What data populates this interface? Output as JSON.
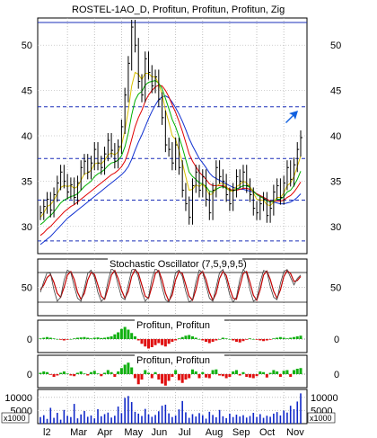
{
  "chart_data": {
    "type": "line",
    "title": "ROSTEL-1AO_D, Profitun, Profitun, Profitun, Zig",
    "price_axis": {
      "ylim": [
        27,
        53
      ],
      "ticks": [
        30,
        35,
        40,
        45,
        50
      ],
      "ticks_right": [
        30,
        35,
        40,
        45,
        50
      ]
    },
    "reference_levels": [
      52.5,
      43.2,
      37.5,
      32.9,
      28.4
    ],
    "x_labels": [
      "l2",
      "Mar",
      "Apr",
      "May",
      "Jun",
      "Jul",
      "Aug",
      "Sep",
      "Oct",
      "Nov"
    ],
    "price_close": [
      31.5,
      32.2,
      33.0,
      31.8,
      33.5,
      34.8,
      36.0,
      35.0,
      33.8,
      34.6,
      33.2,
      34.8,
      36.5,
      37.2,
      36.0,
      37.0,
      38.5,
      37.0,
      36.5,
      38.0,
      39.5,
      38.4,
      37.2,
      38.8,
      41.0,
      44.5,
      48.0,
      52.0,
      50.0,
      46.0,
      44.5,
      48.5,
      47.0,
      45.5,
      46.5,
      44.0,
      42.0,
      39.0,
      38.5,
      37.0,
      39.0,
      36.5,
      34.0,
      32.5,
      31.0,
      34.5,
      36.0,
      34.0,
      35.5,
      33.0,
      31.5,
      34.0,
      36.5,
      35.5,
      35.0,
      33.5,
      32.5,
      34.0,
      35.5,
      35.0,
      36.0,
      34.5,
      33.5,
      32.0,
      31.5,
      32.5,
      33.0,
      31.2,
      32.0,
      33.8,
      34.5,
      33.2,
      34.8,
      36.5,
      35.2,
      36.8,
      38.5,
      39.8
    ],
    "ma_fast": [
      31.0,
      31.5,
      32.2,
      32.4,
      32.9,
      33.6,
      34.3,
      34.5,
      34.4,
      34.5,
      34.2,
      34.4,
      35.1,
      35.8,
      35.9,
      36.2,
      36.9,
      37.0,
      36.9,
      37.3,
      37.9,
      38.1,
      37.9,
      38.2,
      39.0,
      40.6,
      42.8,
      45.5,
      47.0,
      46.8,
      46.2,
      46.9,
      46.9,
      46.5,
      46.5,
      45.7,
      44.6,
      42.8,
      41.5,
      40.0,
      39.6,
      38.4,
      37.0,
      35.5,
      34.0,
      34.1,
      34.6,
      34.4,
      34.7,
      34.2,
      33.5,
      33.6,
      34.4,
      34.7,
      34.8,
      34.4,
      33.9,
      33.9,
      34.4,
      34.6,
      35.0,
      34.8,
      34.4,
      33.7,
      33.0,
      32.9,
      32.9,
      32.4,
      32.3,
      32.7,
      33.2,
      33.2,
      33.7,
      34.5,
      34.8,
      35.5,
      36.6,
      37.8
    ],
    "ma_mid": [
      30.2,
      30.5,
      30.9,
      31.2,
      31.6,
      32.1,
      32.6,
      32.9,
      33.1,
      33.3,
      33.4,
      33.6,
      34.0,
      34.4,
      34.7,
      35.0,
      35.5,
      35.8,
      36.0,
      36.3,
      36.7,
      37.0,
      37.1,
      37.3,
      37.8,
      38.8,
      40.3,
      42.3,
      43.9,
      44.6,
      44.9,
      45.6,
      45.9,
      46.0,
      46.1,
      45.8,
      45.2,
      44.1,
      43.0,
      41.8,
      41.0,
      39.9,
      38.7,
      37.4,
      36.0,
      35.5,
      35.2,
      34.8,
      34.7,
      34.4,
      33.9,
      33.8,
      34.1,
      34.3,
      34.4,
      34.2,
      34.0,
      33.9,
      34.1,
      34.3,
      34.5,
      34.5,
      34.3,
      33.9,
      33.5,
      33.3,
      33.1,
      32.8,
      32.7,
      32.8,
      33.0,
      33.0,
      33.3,
      33.8,
      34.0,
      34.5,
      35.2,
      36.1
    ],
    "ma_slow": [
      29.0,
      29.3,
      29.7,
      30.0,
      30.4,
      30.8,
      31.2,
      31.6,
      31.9,
      32.2,
      32.4,
      32.7,
      33.0,
      33.3,
      33.6,
      33.9,
      34.2,
      34.5,
      34.8,
      35.1,
      35.4,
      35.7,
      35.9,
      36.2,
      36.6,
      37.2,
      38.2,
      39.6,
      41.0,
      42.0,
      42.8,
      43.8,
      44.5,
      45.0,
      45.4,
      45.6,
      45.5,
      45.0,
      44.3,
      43.4,
      42.6,
      41.6,
      40.5,
      39.3,
      38.0,
      37.2,
      36.6,
      36.0,
      35.6,
      35.2,
      34.7,
      34.5,
      34.5,
      34.5,
      34.5,
      34.3,
      34.1,
      34.0,
      34.0,
      34.1,
      34.2,
      34.2,
      34.1,
      33.9,
      33.6,
      33.4,
      33.2,
      33.0,
      32.8,
      32.8,
      32.8,
      32.8,
      32.9,
      33.2,
      33.4,
      33.8,
      34.3,
      34.9
    ],
    "ma_long": [
      28.0,
      28.3,
      28.6,
      28.9,
      29.3,
      29.7,
      30.1,
      30.5,
      30.9,
      31.2,
      31.5,
      31.8,
      32.1,
      32.4,
      32.7,
      33.0,
      33.3,
      33.6,
      33.9,
      34.2,
      34.5,
      34.8,
      35.1,
      35.4,
      35.7,
      36.1,
      36.6,
      37.4,
      38.4,
      39.3,
      40.1,
      41.0,
      41.9,
      42.7,
      43.4,
      44.0,
      44.3,
      44.4,
      44.2,
      43.7,
      43.1,
      42.4,
      41.6,
      40.7,
      39.7,
      38.9,
      38.2,
      37.5,
      37.0,
      36.5,
      35.9,
      35.5,
      35.3,
      35.1,
      34.9,
      34.7,
      34.5,
      34.3,
      34.2,
      34.1,
      34.1,
      34.0,
      33.9,
      33.8,
      33.6,
      33.4,
      33.2,
      33.0,
      32.8,
      32.7,
      32.6,
      32.5,
      32.5,
      32.6,
      32.7,
      32.9,
      33.2,
      33.6
    ],
    "stochastic": {
      "title": "Stochastic Oscillator (7,5,9,9,5)",
      "ylim": [
        0,
        100
      ],
      "ticks": [
        50
      ],
      "levels": [
        80,
        20
      ],
      "k": [
        40,
        62,
        80,
        78,
        45,
        22,
        30,
        65,
        85,
        80,
        52,
        28,
        22,
        48,
        78,
        85,
        70,
        40,
        22,
        28,
        62,
        88,
        82,
        55,
        30,
        25,
        55,
        85,
        88,
        70,
        40,
        22,
        30,
        68,
        88,
        82,
        50,
        25,
        20,
        45,
        80,
        85,
        72,
        42,
        20,
        25,
        60,
        85,
        80,
        55,
        28,
        22,
        50,
        80,
        86,
        65,
        35,
        20,
        30,
        66,
        86,
        78,
        45,
        22,
        26,
        60,
        84,
        82,
        52,
        30,
        25,
        58,
        82,
        86,
        70,
        55,
        68,
        75
      ],
      "d": [
        45,
        55,
        70,
        76,
        60,
        38,
        30,
        50,
        75,
        82,
        66,
        40,
        26,
        38,
        65,
        80,
        76,
        55,
        32,
        26,
        48,
        75,
        84,
        68,
        44,
        28,
        42,
        72,
        86,
        78,
        55,
        32,
        28,
        52,
        78,
        84,
        65,
        38,
        22,
        35,
        65,
        82,
        78,
        56,
        32,
        24,
        45,
        75,
        82,
        66,
        40,
        24,
        38,
        68,
        82,
        74,
        48,
        28,
        26,
        52,
        78,
        82,
        60,
        34,
        24,
        45,
        75,
        83,
        66,
        42,
        28,
        45,
        72,
        84,
        78,
        62,
        64,
        72
      ]
    },
    "profitun_1": {
      "title": "Profitun, Profitun",
      "ylim": [
        -1,
        1
      ],
      "ticks": [
        0
      ],
      "values": [
        0.05,
        0.1,
        0.15,
        0.1,
        0.05,
        0.0,
        -0.05,
        -0.1,
        -0.05,
        0.0,
        0.05,
        0.1,
        0.12,
        0.15,
        0.1,
        0.05,
        0.1,
        0.12,
        0.08,
        0.1,
        0.15,
        0.2,
        0.35,
        0.5,
        0.75,
        0.9,
        0.7,
        0.45,
        0.2,
        -0.1,
        -0.35,
        -0.55,
        -0.7,
        -0.6,
        -0.45,
        -0.3,
        -0.45,
        -0.55,
        -0.35,
        -0.2,
        -0.1,
        0.05,
        0.15,
        0.25,
        0.3,
        0.2,
        0.1,
        0.0,
        -0.1,
        -0.2,
        -0.3,
        -0.2,
        -0.1,
        0.0,
        0.1,
        0.05,
        0.0,
        -0.1,
        -0.2,
        -0.25,
        -0.15,
        -0.05,
        0.05,
        0.0,
        -0.05,
        -0.1,
        -0.15,
        -0.1,
        -0.05,
        0.05,
        0.1,
        0.15,
        0.1,
        0.05,
        0.1,
        0.15,
        0.2,
        0.25
      ]
    },
    "profitun_2": {
      "title": "Profitun, Profitun",
      "ylim": [
        -1,
        1
      ],
      "ticks": [
        0
      ],
      "values": [
        0.1,
        0.2,
        0.15,
        -0.05,
        -0.2,
        -0.1,
        0.1,
        0.2,
        0.05,
        -0.1,
        -0.15,
        0.1,
        0.2,
        0.05,
        -0.1,
        0.15,
        0.25,
        0.05,
        -0.15,
        0.1,
        0.3,
        0.15,
        -0.2,
        0.2,
        0.45,
        0.7,
        0.85,
        0.5,
        -0.3,
        -0.75,
        -0.4,
        0.3,
        0.1,
        -0.3,
        0.15,
        -0.4,
        -0.7,
        -0.85,
        -0.5,
        -0.2,
        0.3,
        -0.45,
        -0.65,
        -0.4,
        -0.3,
        0.35,
        0.2,
        -0.3,
        0.15,
        -0.25,
        -0.3,
        0.3,
        0.35,
        -0.1,
        -0.15,
        -0.3,
        -0.2,
        0.2,
        0.3,
        -0.1,
        0.15,
        -0.2,
        -0.25,
        -0.3,
        -0.15,
        0.2,
        0.15,
        -0.25,
        0.1,
        0.3,
        0.2,
        -0.2,
        0.25,
        0.3,
        -0.2,
        0.3,
        0.4,
        0.45
      ]
    },
    "volume": {
      "unit_label": "x1000",
      "ticks": [
        5000,
        10000
      ],
      "ylim": [
        0,
        13000
      ],
      "values": [
        2500,
        3200,
        1800,
        6000,
        2200,
        4100,
        1500,
        5200,
        3000,
        2500,
        7500,
        2000,
        3500,
        4800,
        2600,
        3100,
        2000,
        5500,
        2800,
        3600,
        4200,
        2300,
        3000,
        6500,
        4000,
        9800,
        10500,
        8200,
        4500,
        3800,
        2900,
        5600,
        3500,
        2600,
        3300,
        4700,
        6800,
        7200,
        3900,
        2500,
        3100,
        5400,
        8600,
        4300,
        2200,
        3600,
        2700,
        4000,
        3200,
        1900,
        4500,
        3300,
        2400,
        5200,
        2800,
        2100,
        3800,
        2500,
        3400,
        2700,
        3200,
        2300,
        2900,
        4100,
        2500,
        3600,
        2200,
        3000,
        2600,
        3800,
        4400,
        3100,
        5000,
        4200,
        6800,
        5500,
        8400,
        11500
      ]
    }
  }
}
